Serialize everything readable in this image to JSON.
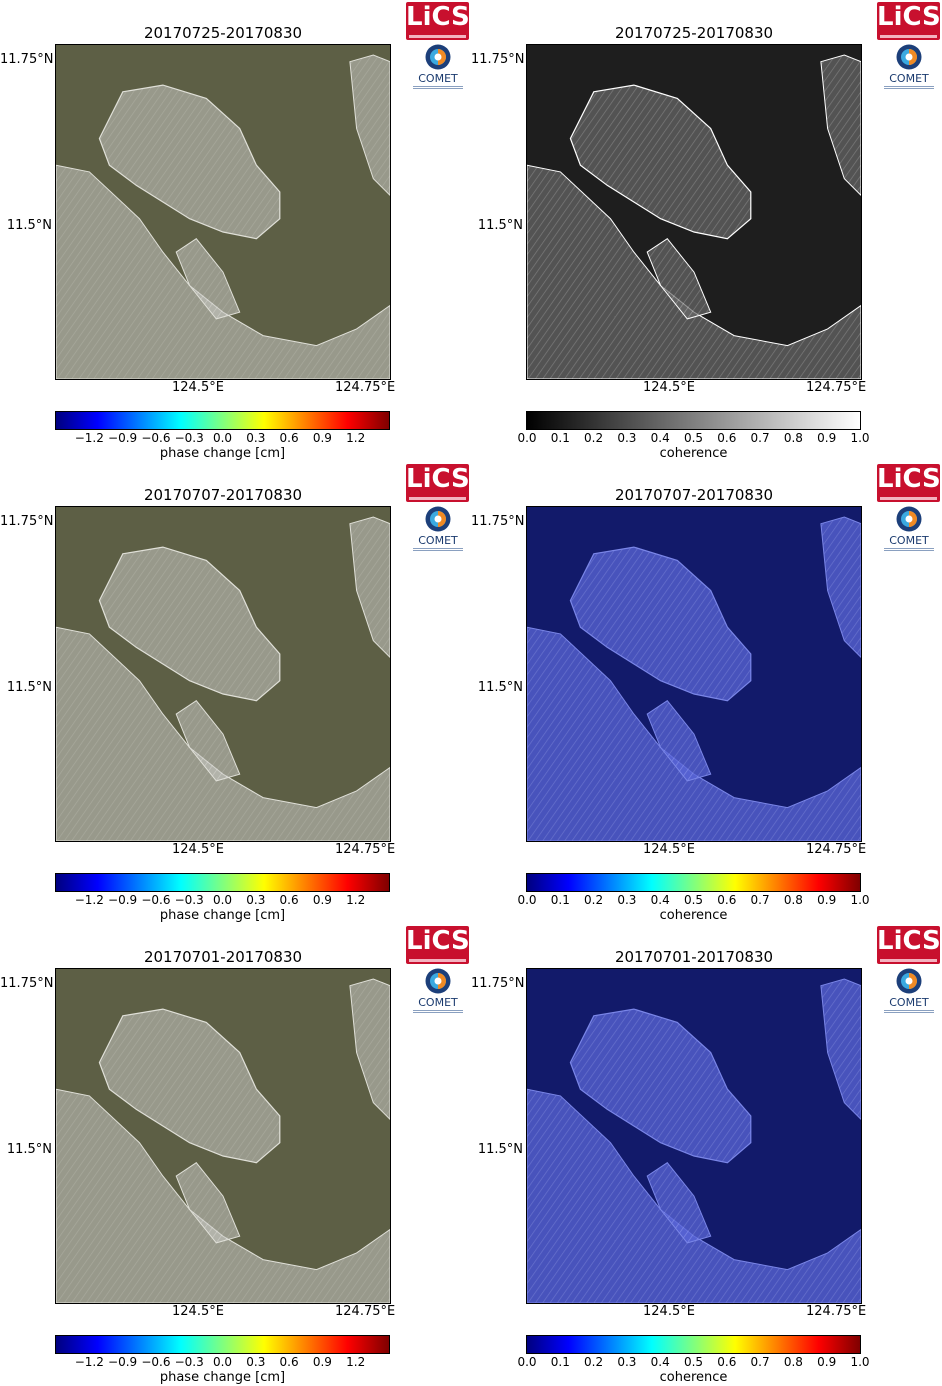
{
  "logos": {
    "lics": "LiCS",
    "comet": "COMET"
  },
  "lat_labels": [
    "11.75°N",
    "11.5°N"
  ],
  "lon_labels": [
    "124.5°E",
    "124.75°E"
  ],
  "colors": {
    "phase_map_bg": "#5d5f45",
    "coherence_gray_bg": "#1e1e1e",
    "coherence_jet_bg": "#121a6a",
    "land_light": "#c8c8c4",
    "coast_blue": "#7a86e8"
  },
  "colorbars": {
    "phase": {
      "label": "phase change [cm]",
      "colormap": "jet",
      "ticks": [
        "−1.2",
        "−0.9",
        "−0.6",
        "−0.3",
        "0.0",
        "0.3",
        "0.6",
        "0.9",
        "1.2"
      ],
      "tick_values": [
        -1.2,
        -0.9,
        -0.6,
        -0.3,
        0.0,
        0.3,
        0.6,
        0.9,
        1.2
      ],
      "range": [
        -1.5,
        1.5
      ]
    },
    "coherence_gray": {
      "label": "coherence",
      "colormap": "gray",
      "ticks": [
        "0.0",
        "0.1",
        "0.2",
        "0.3",
        "0.4",
        "0.5",
        "0.6",
        "0.7",
        "0.8",
        "0.9",
        "1.0"
      ],
      "tick_values": [
        0.0,
        0.1,
        0.2,
        0.3,
        0.4,
        0.5,
        0.6,
        0.7,
        0.8,
        0.9,
        1.0
      ],
      "range": [
        0.0,
        1.0
      ]
    },
    "coherence_jet": {
      "label": "coherence",
      "colormap": "jet",
      "ticks": [
        "0.0",
        "0.1",
        "0.2",
        "0.3",
        "0.4",
        "0.5",
        "0.6",
        "0.7",
        "0.8",
        "0.9",
        "1.0"
      ],
      "tick_values": [
        0.0,
        0.1,
        0.2,
        0.3,
        0.4,
        0.5,
        0.6,
        0.7,
        0.8,
        0.9,
        1.0
      ],
      "range": [
        0.0,
        1.0
      ]
    }
  },
  "rows": [
    {
      "pair": "20170725-20170830",
      "left": "phase",
      "right": "coherence_gray"
    },
    {
      "pair": "20170707-20170830",
      "left": "phase",
      "right": "coherence_jet"
    },
    {
      "pair": "20170701-20170830",
      "left": "phase",
      "right": "coherence_jet"
    }
  ]
}
